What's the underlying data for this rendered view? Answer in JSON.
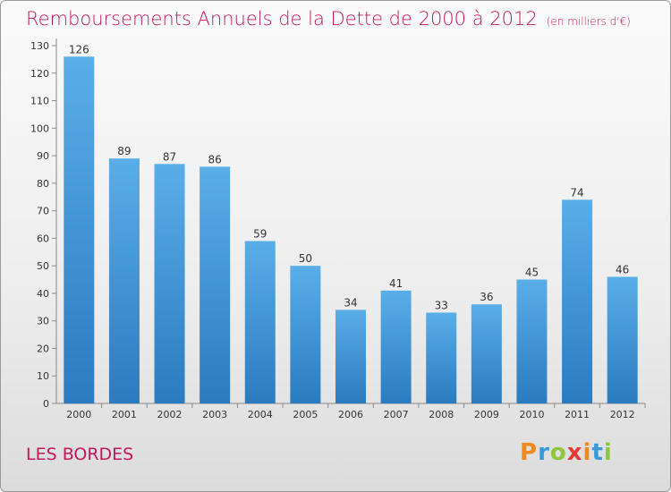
{
  "chart_data": {
    "type": "bar",
    "title": "Remboursements Annuels de la Dette de 2000 à 2012",
    "subtitle": "(en milliers d'€)",
    "categories": [
      "2000",
      "2001",
      "2002",
      "2003",
      "2004",
      "2005",
      "2006",
      "2007",
      "2008",
      "2009",
      "2010",
      "2011",
      "2012"
    ],
    "values": [
      126,
      89,
      87,
      86,
      59,
      50,
      34,
      41,
      33,
      36,
      45,
      74,
      46
    ],
    "ylim": [
      0,
      130
    ],
    "yticks": [
      0,
      10,
      20,
      30,
      40,
      50,
      60,
      70,
      80,
      90,
      100,
      110,
      120,
      130
    ],
    "grid": false,
    "colors": {
      "bar_top": "#5aaee8",
      "bar_bottom": "#2a7bc0",
      "title": "#c2185b"
    }
  },
  "commune": "LES BORDES",
  "logo": {
    "text": "Proxiti",
    "letters": [
      {
        "ch": "P",
        "color": "#f08a1c"
      },
      {
        "ch": "r",
        "color": "#3a9ad9"
      },
      {
        "ch": "o",
        "color": "#8cc63f"
      },
      {
        "ch": "x",
        "color": "#e53935"
      },
      {
        "ch": "i",
        "color": "#f08a1c"
      },
      {
        "ch": "t",
        "color": "#3a9ad9"
      },
      {
        "ch": "i",
        "color": "#8cc63f"
      }
    ]
  }
}
